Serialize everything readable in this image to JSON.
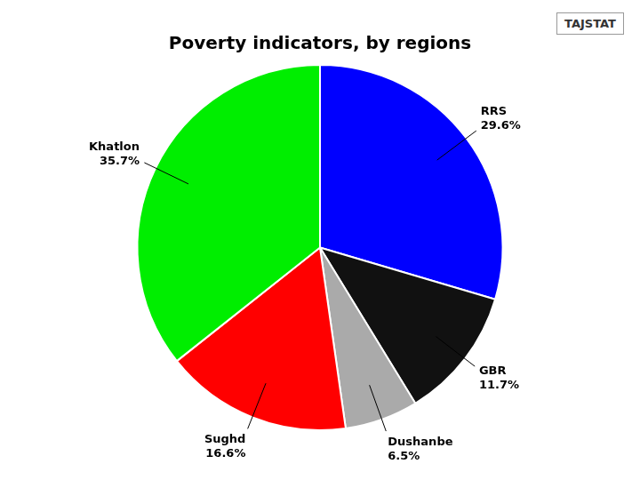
{
  "chart_data": {
    "type": "pie",
    "title": "Poverty indicators, by regions",
    "categories": [
      "RRS",
      "GBR",
      "Dushanbe",
      "Sughd",
      "Khatlon"
    ],
    "values": [
      29.6,
      11.7,
      6.5,
      16.6,
      35.7
    ],
    "value_labels": [
      "29.6%",
      "11.7%",
      "6.5%",
      "16.6%",
      "35.7%"
    ],
    "colors": [
      "#0000FF",
      "#111111",
      "#AAAAAA",
      "#FF0000",
      "#00EE00"
    ],
    "data_labels": true,
    "annotations": [
      "TAJSTAT"
    ]
  }
}
